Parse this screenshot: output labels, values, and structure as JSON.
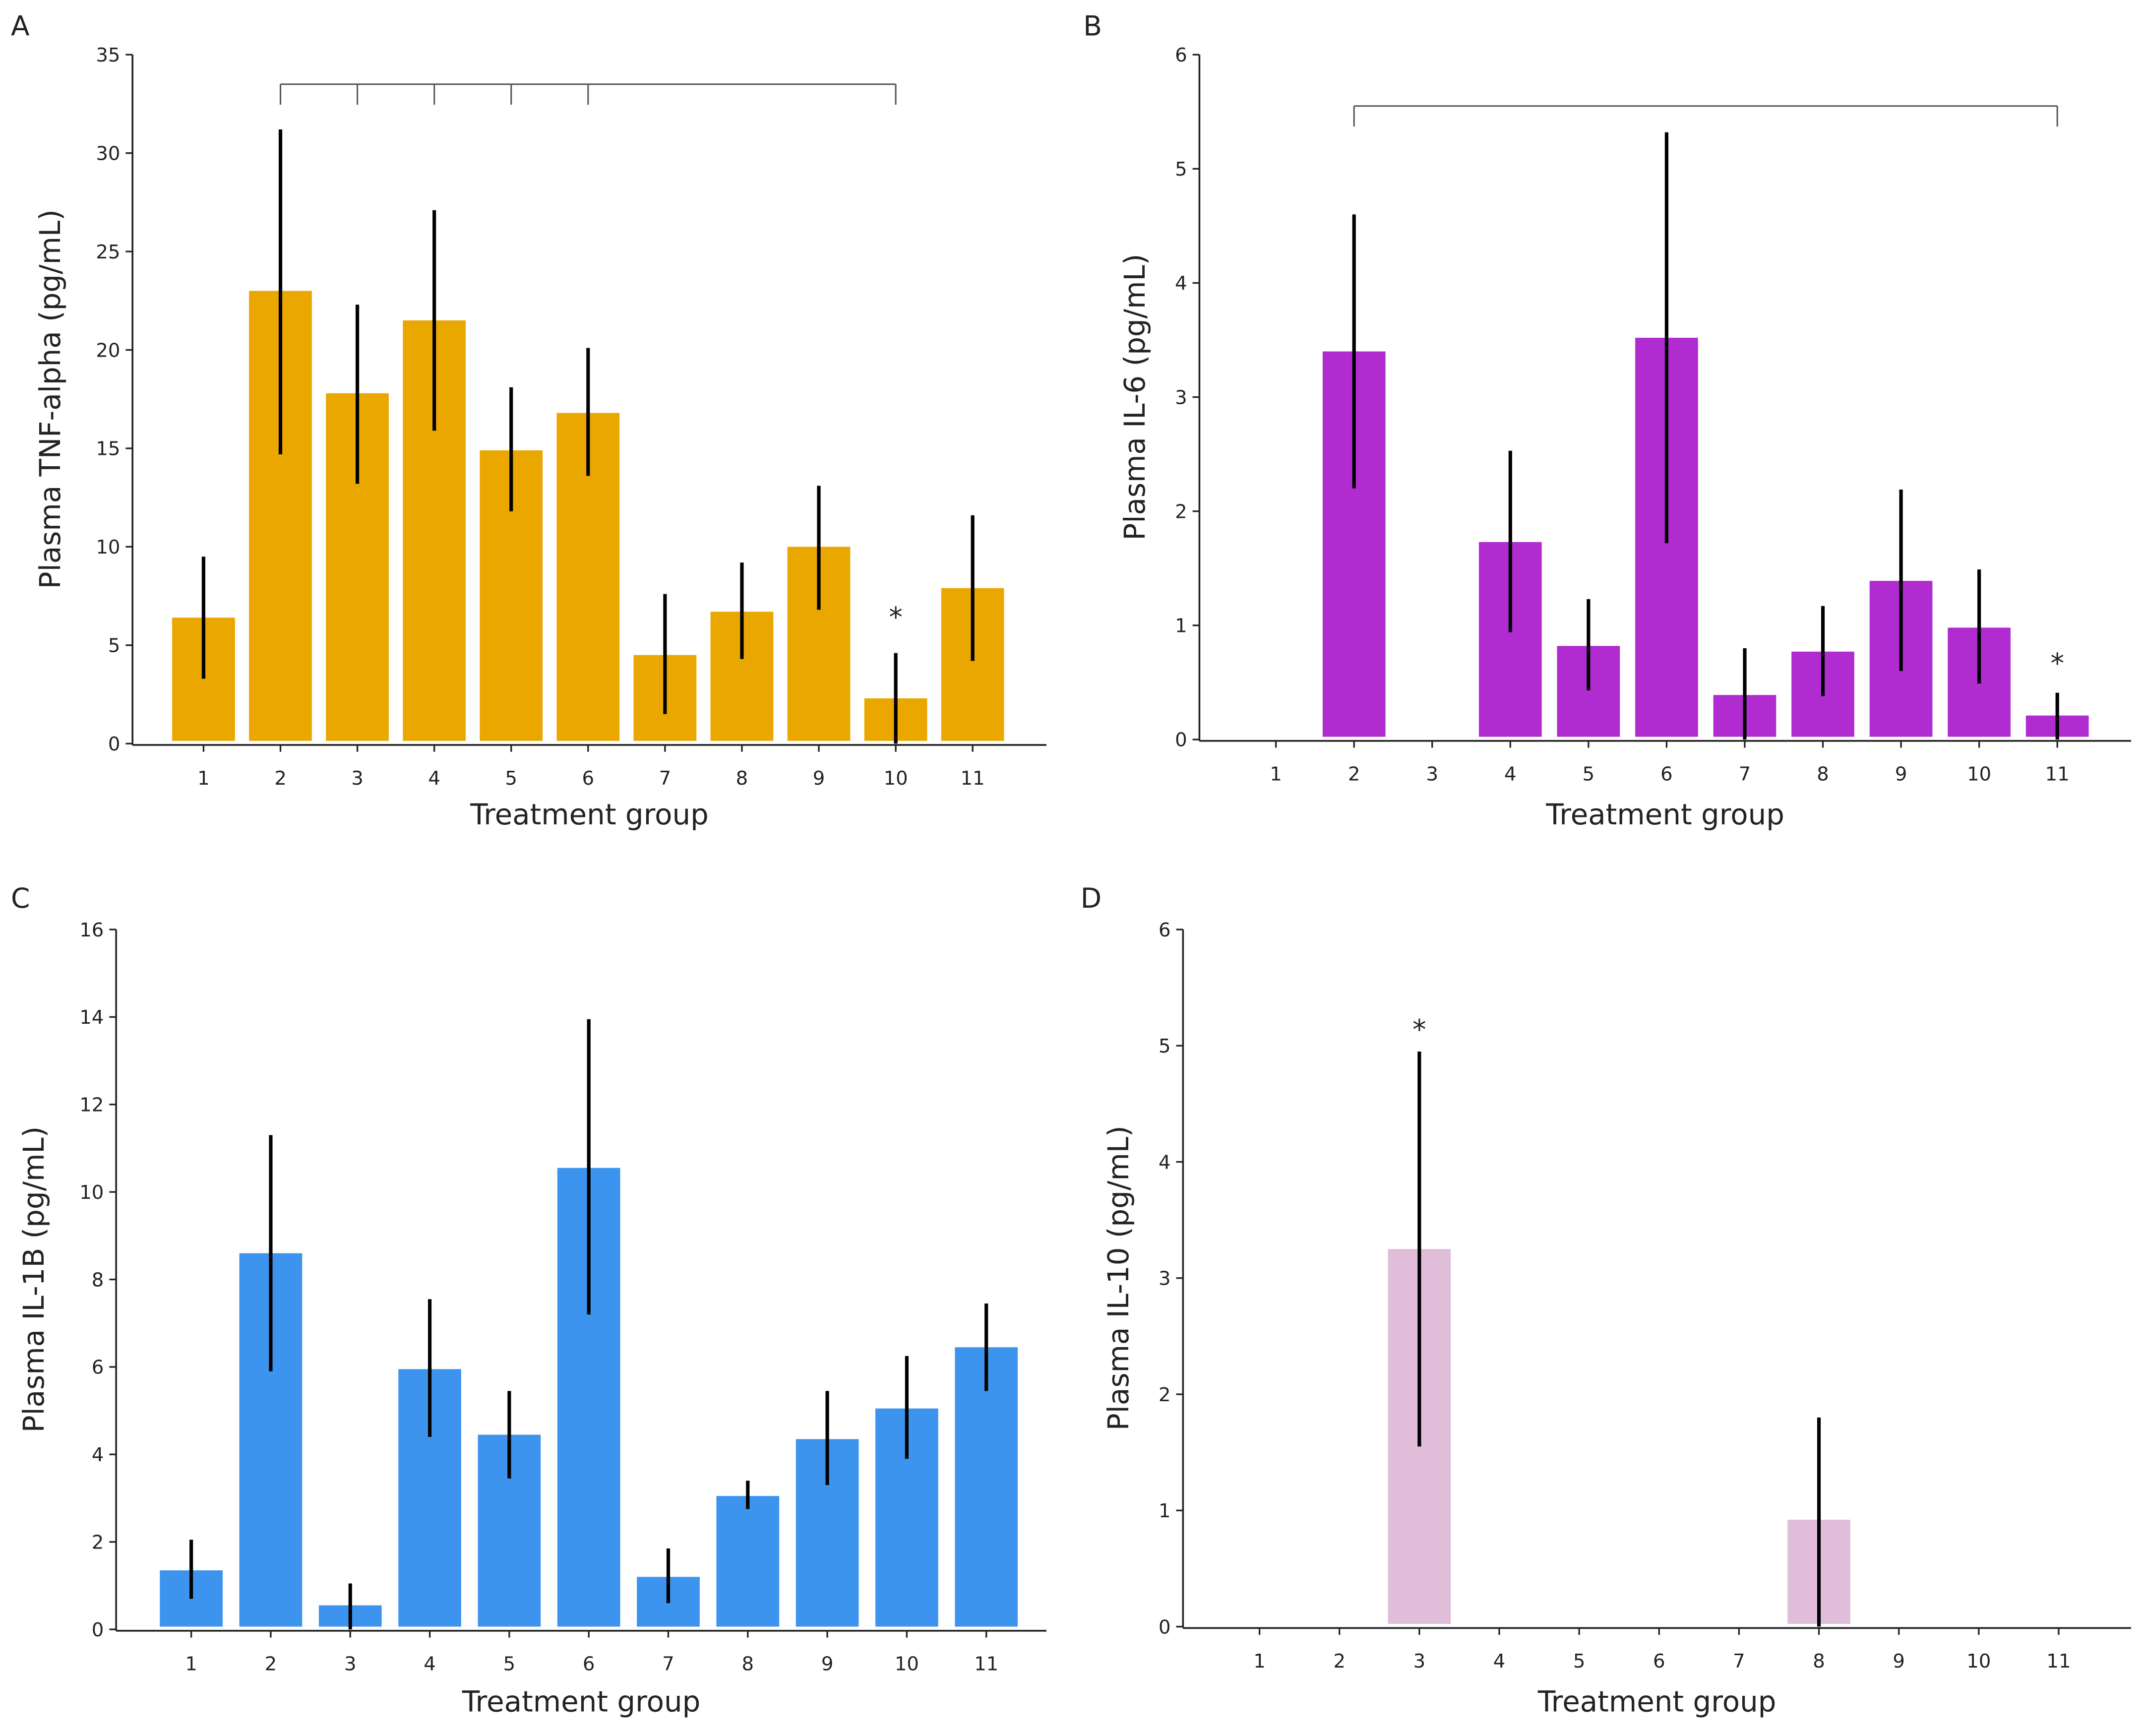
{
  "chart_data": [
    {
      "panel": "A",
      "type": "bar",
      "color": "#E9A700",
      "title": "",
      "xlabel": "Treatment group",
      "ylabel": "Plasma TNF-alpha (pg/mL)",
      "ylim": [
        0,
        35
      ],
      "yticks": [
        0,
        5,
        10,
        15,
        20,
        25,
        30,
        35
      ],
      "categories": [
        "1",
        "2",
        "3",
        "4",
        "5",
        "6",
        "7",
        "8",
        "9",
        "10",
        "11"
      ],
      "values": [
        6.4,
        23.0,
        17.8,
        21.5,
        14.9,
        16.8,
        4.5,
        6.7,
        10.0,
        2.3,
        7.9
      ],
      "err_low": [
        3.3,
        14.7,
        13.2,
        15.9,
        11.8,
        13.6,
        1.5,
        4.3,
        6.8,
        0.0,
        4.2
      ],
      "err_high": [
        9.5,
        31.2,
        22.3,
        27.1,
        18.1,
        20.1,
        7.6,
        9.2,
        13.1,
        4.6,
        11.6
      ],
      "bracket": {
        "level": 33.5,
        "groups": [
          2,
          3,
          4,
          5,
          6,
          10
        ]
      },
      "annotations": [
        {
          "text": "*",
          "group": 10,
          "y": 6.5
        }
      ]
    },
    {
      "panel": "B",
      "type": "bar",
      "color": "#B02CD0",
      "title": "",
      "xlabel": "Treatment group",
      "ylabel": "Plasma IL-6 (pg/mL)",
      "ylim": [
        0,
        6
      ],
      "yticks": [
        0,
        1,
        2,
        3,
        4,
        5,
        6
      ],
      "categories": [
        "1",
        "2",
        "3",
        "4",
        "5",
        "6",
        "7",
        "8",
        "9",
        "10",
        "11"
      ],
      "values": [
        0,
        3.4,
        0,
        1.73,
        0.82,
        3.52,
        0.39,
        0.77,
        1.39,
        0.98,
        0.21
      ],
      "err_low": [
        null,
        2.2,
        null,
        0.94,
        0.43,
        1.72,
        0.0,
        0.38,
        0.6,
        0.49,
        0.0
      ],
      "err_high": [
        null,
        4.6,
        null,
        2.53,
        1.23,
        5.32,
        0.8,
        1.17,
        2.19,
        1.49,
        0.41
      ],
      "bracket": {
        "level": 5.55,
        "groups": [
          2,
          11
        ]
      },
      "annotations": [
        {
          "text": "*",
          "group": 11,
          "y": 0.68
        }
      ]
    },
    {
      "panel": "C",
      "type": "bar",
      "color": "#3D94EE",
      "title": "",
      "xlabel": "Treatment group",
      "ylabel": "Plasma IL-1B (pg/mL)",
      "ylim": [
        0,
        16
      ],
      "yticks": [
        0,
        2,
        4,
        6,
        8,
        10,
        12,
        14,
        16
      ],
      "categories": [
        "1",
        "2",
        "3",
        "4",
        "5",
        "6",
        "7",
        "8",
        "9",
        "10",
        "11"
      ],
      "values": [
        1.35,
        8.6,
        0.55,
        5.95,
        4.45,
        10.55,
        1.2,
        3.05,
        4.35,
        5.05,
        6.45
      ],
      "err_low": [
        0.7,
        5.9,
        0.0,
        4.4,
        3.45,
        7.2,
        0.6,
        2.75,
        3.3,
        3.9,
        5.45
      ],
      "err_high": [
        2.05,
        11.3,
        1.05,
        7.55,
        5.45,
        13.95,
        1.85,
        3.4,
        5.45,
        6.25,
        7.45
      ],
      "bracket": null,
      "annotations": []
    },
    {
      "panel": "D",
      "type": "bar",
      "color": "#E0BEDA",
      "title": "",
      "xlabel": "Treatment group",
      "ylabel": "Plasma IL-10 (pg/mL)",
      "ylim": [
        0,
        6
      ],
      "yticks": [
        0,
        1,
        2,
        3,
        4,
        5,
        6
      ],
      "categories": [
        "1",
        "2",
        "3",
        "4",
        "5",
        "6",
        "7",
        "8",
        "9",
        "10",
        "11"
      ],
      "values": [
        0,
        0,
        3.25,
        0,
        0,
        0,
        0,
        0.92,
        0,
        0,
        0
      ],
      "err_low": [
        null,
        null,
        1.55,
        null,
        null,
        null,
        null,
        0.0,
        null,
        null,
        null
      ],
      "err_high": [
        null,
        null,
        4.95,
        null,
        null,
        null,
        null,
        1.8,
        null,
        null,
        null
      ],
      "bracket": null,
      "annotations": [
        {
          "text": "*",
          "group": 3,
          "y": 5.15
        }
      ]
    }
  ]
}
